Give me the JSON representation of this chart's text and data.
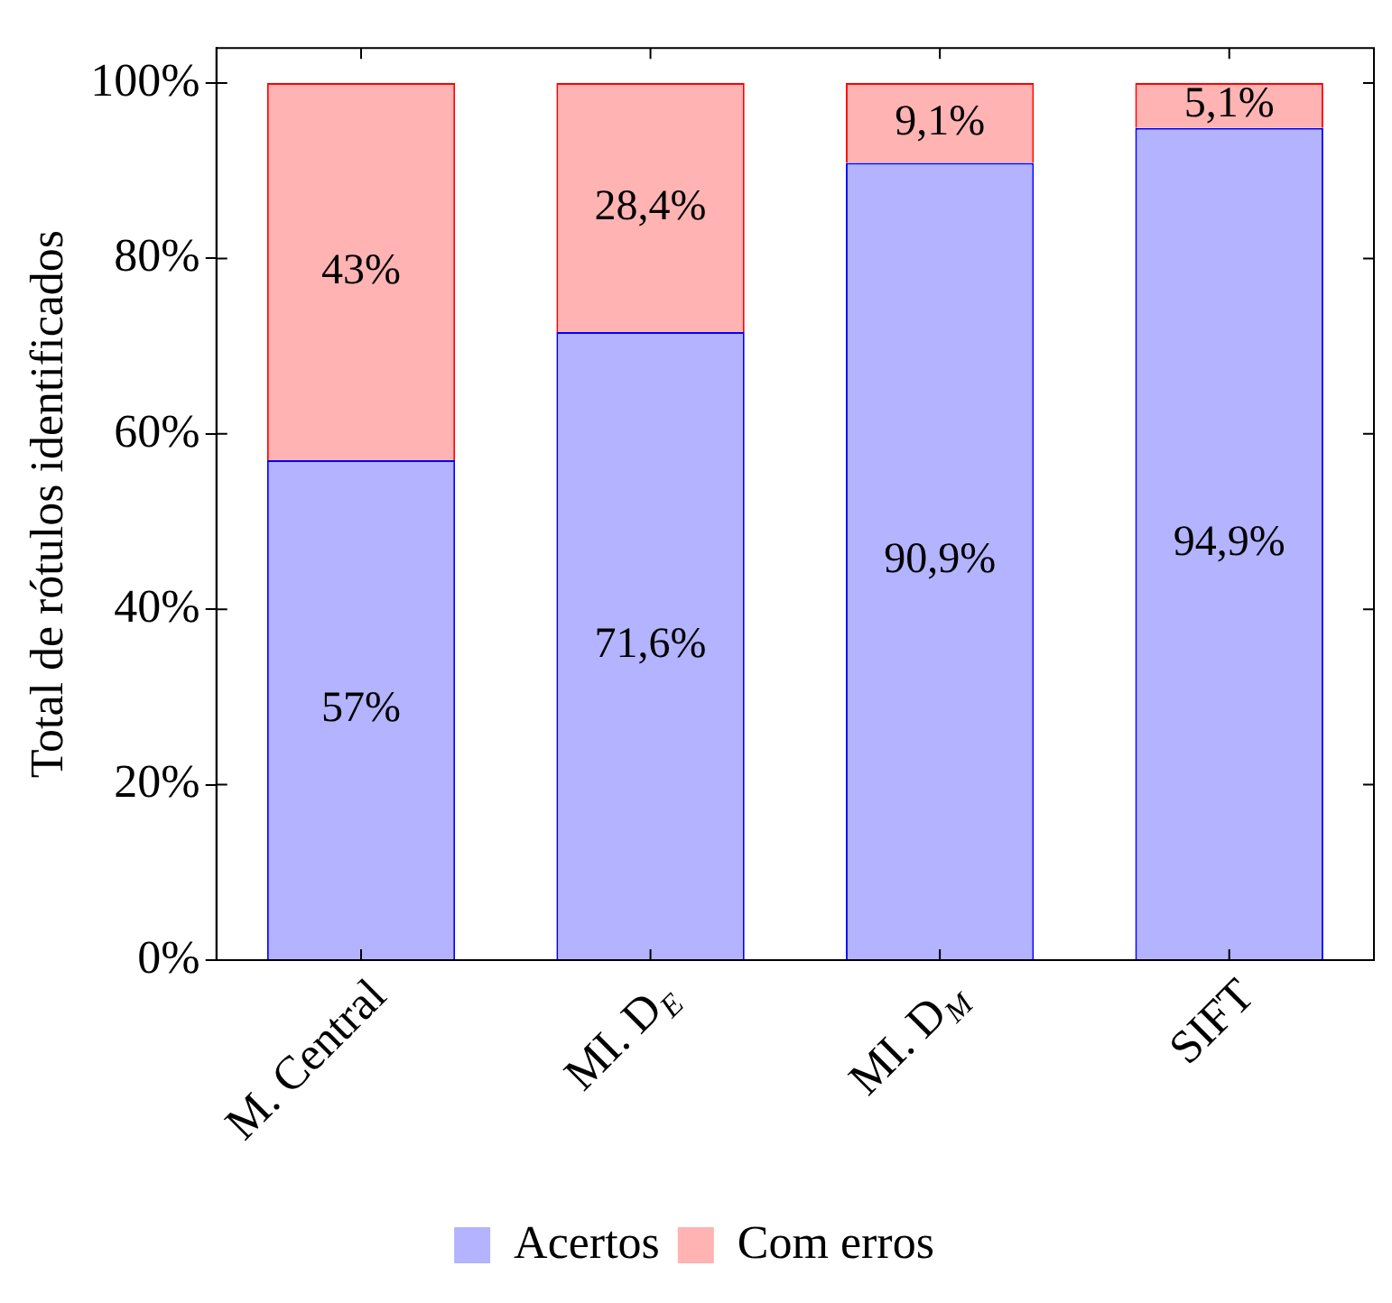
{
  "chart_data": {
    "type": "bar",
    "stacked": true,
    "ylabel": "Total de rótulos identificados",
    "categories": [
      "M. Central",
      "MI. D$_{E}$",
      "MI. D$_{M}$",
      "SIFT"
    ],
    "series": [
      {
        "name": "Acertos",
        "color": "#b3b3ff",
        "values": [
          57,
          71.6,
          90.9,
          94.9
        ],
        "value_labels": [
          "57%",
          "71,6%",
          "90,9%",
          "94,9%"
        ]
      },
      {
        "name": "Com erros",
        "color": "#ffb3b3",
        "values": [
          43,
          28.4,
          9.1,
          5.1
        ],
        "value_labels": [
          "43%",
          "28,4%",
          "9,1%",
          "5,1%"
        ]
      }
    ],
    "ylim": [
      0,
      104
    ],
    "yticks": [
      {
        "value": 0,
        "label": "0%"
      },
      {
        "value": 20,
        "label": "20%"
      },
      {
        "value": 40,
        "label": "40%"
      },
      {
        "value": 60,
        "label": "60%"
      },
      {
        "value": 80,
        "label": "80%"
      },
      {
        "value": 100,
        "label": "100%"
      }
    ],
    "grid": false,
    "legend": "bottom"
  }
}
